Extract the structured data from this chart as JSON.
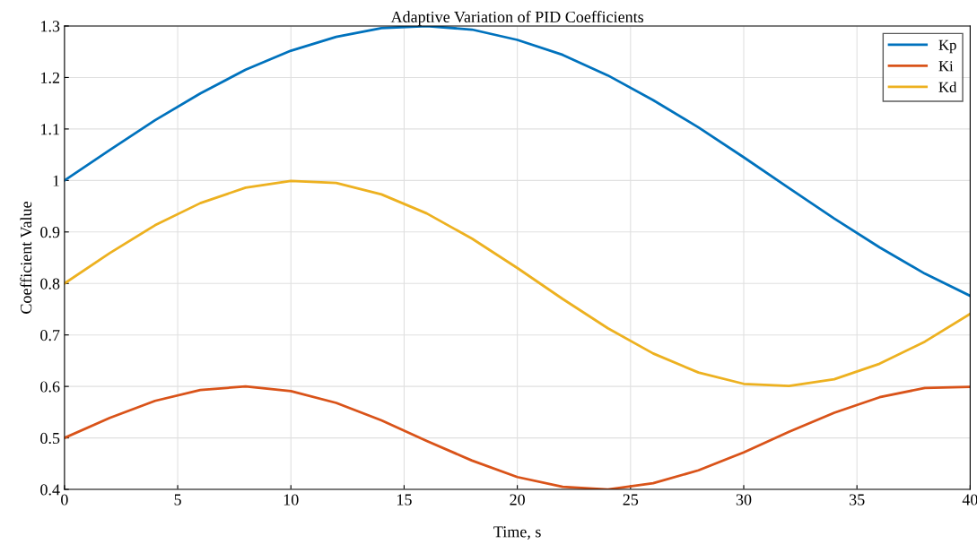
{
  "chart_data": {
    "type": "line",
    "title": "Adaptive Variation of PID Coefficients",
    "xlabel": "Time, s",
    "ylabel": "Coefficient Value",
    "x": [
      0,
      2,
      4,
      6,
      8,
      10,
      12,
      14,
      16,
      18,
      20,
      22,
      24,
      26,
      28,
      30,
      32,
      34,
      36,
      38,
      40
    ],
    "series": [
      {
        "name": "Kp",
        "color": "#0072bd",
        "values": [
          1.0,
          1.059,
          1.117,
          1.169,
          1.215,
          1.252,
          1.279,
          1.296,
          1.3,
          1.293,
          1.273,
          1.244,
          1.204,
          1.156,
          1.103,
          1.045,
          0.985,
          0.926,
          0.87,
          0.819,
          0.776
        ]
      },
      {
        "name": "Ki",
        "color": "#d95319",
        "values": [
          0.5,
          0.539,
          0.572,
          0.593,
          0.6,
          0.591,
          0.568,
          0.534,
          0.494,
          0.456,
          0.424,
          0.405,
          0.4,
          0.412,
          0.437,
          0.472,
          0.512,
          0.549,
          0.579,
          0.597,
          0.599
        ]
      },
      {
        "name": "Kd",
        "color": "#edb120",
        "values": [
          0.8,
          0.859,
          0.913,
          0.956,
          0.986,
          0.999,
          0.995,
          0.973,
          0.936,
          0.887,
          0.83,
          0.77,
          0.713,
          0.664,
          0.627,
          0.605,
          0.601,
          0.614,
          0.644,
          0.687,
          0.741
        ]
      }
    ],
    "xlim": [
      0,
      40
    ],
    "xticks": [
      0,
      5,
      10,
      15,
      20,
      25,
      30,
      35,
      40
    ],
    "ylim": [
      0.4,
      1.3
    ],
    "yticks": [
      0.4,
      0.5,
      0.6,
      0.7,
      0.8,
      0.9,
      1,
      1.1,
      1.2,
      1.3
    ],
    "grid": true,
    "legend": "top right",
    "marker": "none",
    "line_style": "solid"
  }
}
